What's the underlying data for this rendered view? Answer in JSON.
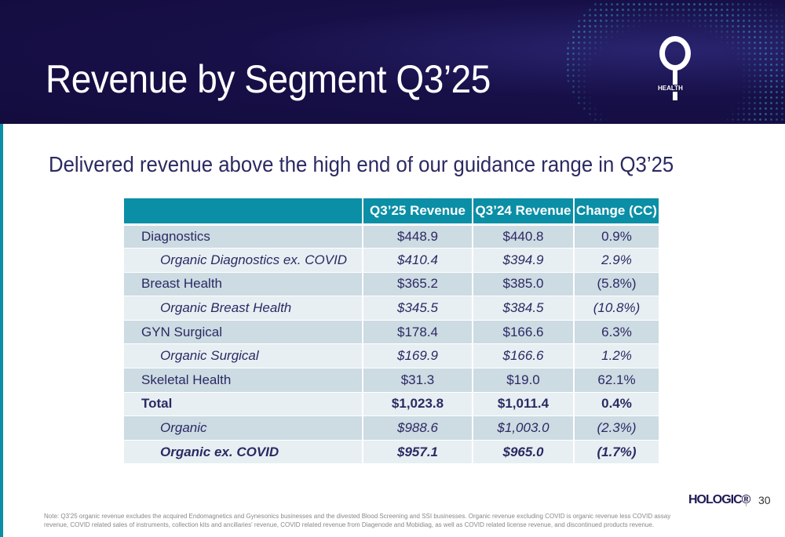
{
  "header": {
    "title": "Revenue by Segment Q3’25",
    "logo_text": "HEALTH"
  },
  "subtitle": "Delivered revenue above the high end of our guidance range in Q3’25",
  "table": {
    "columns": [
      "",
      "Q3’25 Revenue",
      "Q3’24 Revenue",
      "Change (CC)"
    ],
    "rows": [
      {
        "label": "Diagnostics",
        "q325": "$448.9",
        "q324": "$440.8",
        "change": "0.9%"
      },
      {
        "label": "Organic Diagnostics ex. COVID",
        "q325": "$410.4",
        "q324": "$394.9",
        "change": "2.9%"
      },
      {
        "label": "Breast Health",
        "q325": "$365.2",
        "q324": "$385.0",
        "change": "(5.8%)"
      },
      {
        "label": "Organic Breast Health",
        "q325": "$345.5",
        "q324": "$384.5",
        "change": "(10.8%)"
      },
      {
        "label": "GYN Surgical",
        "q325": "$178.4",
        "q324": "$166.6",
        "change": "6.3%"
      },
      {
        "label": "Organic Surgical",
        "q325": "$169.9",
        "q324": "$166.6",
        "change": "1.2%"
      },
      {
        "label": "Skeletal Health",
        "q325": "$31.3",
        "q324": "$19.0",
        "change": "62.1%"
      },
      {
        "label": "Total",
        "q325": "$1,023.8",
        "q324": "$1,011.4",
        "change": "0.4%"
      },
      {
        "label": "Organic",
        "q325": "$988.6",
        "q324": "$1,003.0",
        "change": "(2.3%)"
      },
      {
        "label": "Organic ex. COVID",
        "q325": "$957.1",
        "q324": "$965.0",
        "change": "(1.7%)"
      }
    ]
  },
  "footer": {
    "brand": "HOLOGIC®",
    "page": "30",
    "note": "Note: Q3’25 organic revenue excludes the acquired Endomagnetics and Gynesonics businesses and the divested Blood Screening and SSI businesses. Organic revenue excluding COVID is organic revenue less COVID assay revenue, COVID related sales of instruments, collection kits and ancillaries' revenue, COVID related revenue from Diagenode and Mobidiag, as well as COVID related license revenue, and discontinued products revenue."
  },
  "colors": {
    "header_bg": "#130c3e",
    "accent": "#0a8fa6",
    "row_dark": "#cddbe3",
    "row_light": "#e8eff3",
    "text": "#2b2a62"
  }
}
